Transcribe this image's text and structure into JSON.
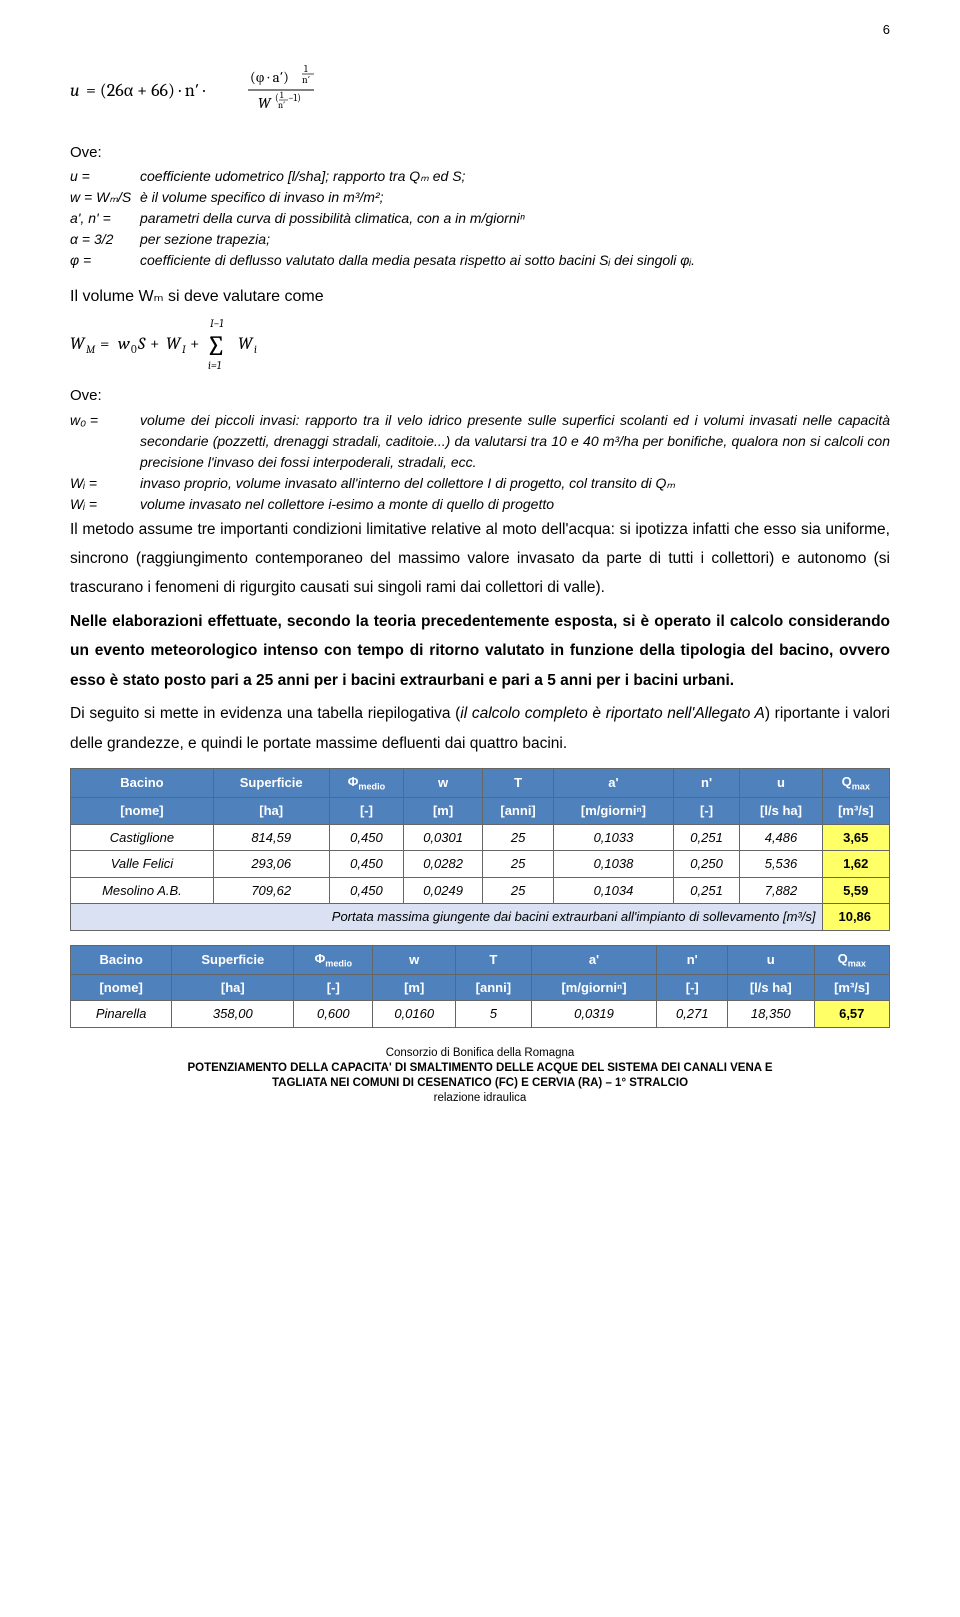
{
  "page_number": "6",
  "ove1": "Ove:",
  "defs1": [
    {
      "lhs": "u =",
      "rhs": "coefficiente udometrico [l/sha]; rapporto tra Qₘ ed S;"
    },
    {
      "lhs": "w = Wₘ/S",
      "rhs": "è il volume specifico di invaso in m³/m²;"
    },
    {
      "lhs": "a', n' =",
      "rhs": "parametri della curva di possibilità climatica, con a in m/giorniⁿ"
    },
    {
      "lhs": "α = 3/2",
      "rhs": "per sezione trapezia;"
    },
    {
      "lhs": "φ =",
      "rhs": "coefficiente di deflusso valutato dalla media pesata rispetto ai sotto bacini Sᵢ dei singoli φᵢ."
    }
  ],
  "subheading": "Il volume Wₘ si deve valutare come",
  "ove2": "Ove:",
  "defs2": [
    {
      "lhs": "w₀ =",
      "rhs": "volume dei piccoli invasi: rapporto tra il velo idrico presente sulle superfici scolanti ed i volumi invasati nelle capacità secondarie (pozzetti, drenaggi stradali, caditoie...) da valutarsi tra 10 e 40 m³/ha per bonifiche, qualora non si calcoli con precisione l'invaso dei fossi interpoderali, stradali, ecc."
    },
    {
      "lhs": "Wᵢ =",
      "rhs": "invaso proprio, volume invasato all'interno del collettore I di progetto, col transito di Qₘ"
    },
    {
      "lhs": "Wᵢ =",
      "rhs": "volume invasato nel collettore i-esimo a monte di quello di progetto"
    }
  ],
  "para1": "Il metodo assume tre importanti condizioni limitative relative al moto dell'acqua: si ipotizza infatti che esso sia uniforme, sincrono (raggiungimento contemporaneo del massimo valore invasato da parte di tutti i collettori) e autonomo (si trascurano i fenomeni di rigurgito causati sui singoli rami dai collettori di valle).",
  "para2": "Nelle elaborazioni effettuate, secondo la teoria precedentemente esposta, si è operato il calcolo considerando un evento meteorologico intenso con tempo di ritorno valutato in funzione della tipologia del bacino, ovvero esso è stato posto pari a 25 anni per i bacini extraurbani e pari a 5 anni per i bacini urbani.",
  "para3_a": "Di seguito si mette in evidenza una tabella riepilogativa (",
  "para3_i": "il calcolo completo è riportato nell'Allegato A",
  "para3_b": ") riportante i valori delle grandezze, e quindi le portate massime defluenti dai quattro bacini.",
  "table1": {
    "header_bg": "#4f81bd",
    "header_color": "#ffffff",
    "highlight_bg": "#ffff66",
    "summary_bg": "#d9e1f2",
    "cols_h1": [
      "Bacino",
      "Superficie",
      "Φ_medio",
      "w",
      "T",
      "a'",
      "n'",
      "u",
      "Q_max"
    ],
    "cols_h2": [
      "[nome]",
      "[ha]",
      "[-]",
      "[m]",
      "[anni]",
      "[m/giorniⁿ]",
      "[-]",
      "[l/s ha]",
      "[m³/s]"
    ],
    "rows": [
      [
        "Castiglione",
        "814,59",
        "0,450",
        "0,0301",
        "25",
        "0,1033",
        "0,251",
        "4,486",
        "3,65"
      ],
      [
        "Valle Felici",
        "293,06",
        "0,450",
        "0,0282",
        "25",
        "0,1038",
        "0,250",
        "5,536",
        "1,62"
      ],
      [
        "Mesolino A.B.",
        "709,62",
        "0,450",
        "0,0249",
        "25",
        "0,1034",
        "0,251",
        "7,882",
        "5,59"
      ]
    ],
    "summary_label": "Portata massima giungente dai bacini extraurbani all'impianto di sollevamento [m³/s]",
    "summary_value": "10,86"
  },
  "table2": {
    "cols_h1": [
      "Bacino",
      "Superficie",
      "Φ_medio",
      "w",
      "T",
      "a'",
      "n'",
      "u",
      "Q_max"
    ],
    "cols_h2": [
      "[nome]",
      "[ha]",
      "[-]",
      "[m]",
      "[anni]",
      "[m/giorniⁿ]",
      "[-]",
      "[l/s ha]",
      "[m³/s]"
    ],
    "rows": [
      [
        "Pinarella",
        "358,00",
        "0,600",
        "0,0160",
        "5",
        "0,0319",
        "0,271",
        "18,350",
        "6,57"
      ]
    ]
  },
  "footer": {
    "l1": "Consorzio di Bonifica della Romagna",
    "l2": "POTENZIAMENTO DELLA CAPACITA' DI SMALTIMENTO DELLE ACQUE DEL SISTEMA DEI CANALI VENA E",
    "l3": "TAGLIATA NEI COMUNI DI CESENATICO (FC) E CERVIA (RA) – 1° STRALCIO",
    "l4": "relazione idraulica"
  }
}
